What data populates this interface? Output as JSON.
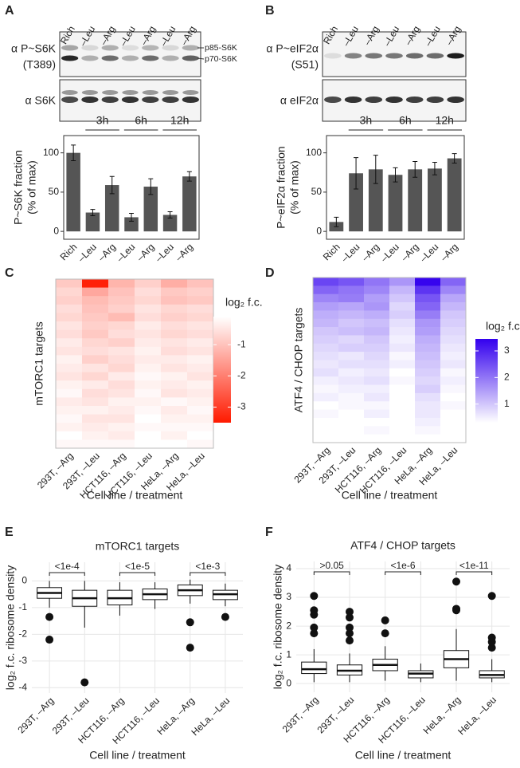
{
  "panels": [
    "A",
    "B",
    "C",
    "D",
    "E",
    "F"
  ],
  "blots": [
    {
      "lanes": [
        "Rich",
        "–Leu",
        "–Arg",
        "–Leu",
        "–Arg",
        "–Leu",
        "–Arg"
      ],
      "labels": [
        "α P~S6K",
        "(T389)",
        "α S6K"
      ],
      "bands": [
        "p85-S6K",
        "p70-S6K"
      ]
    },
    {
      "lanes": [
        "Rich",
        "–Leu",
        "–Arg",
        "–Leu",
        "–Arg",
        "–Leu",
        "–Arg"
      ],
      "labels": [
        "α P~eIF2α",
        "(S51)",
        "α eIF2α"
      ]
    }
  ],
  "chart_data": [
    {
      "type": "bar",
      "ylabel": [
        "P~S6K fraction",
        "(% of max)"
      ],
      "categories": [
        "Rich",
        "–Leu",
        "–Arg",
        "–Leu",
        "–Arg",
        "–Leu",
        "–Arg"
      ],
      "group_labels": [
        "3h",
        "6h",
        "12h"
      ],
      "values": [
        100,
        24,
        59,
        18,
        57,
        21,
        70
      ],
      "errors": [
        10,
        4,
        11,
        5,
        10,
        4,
        6
      ],
      "color": "#555555",
      "ylim": [
        -10,
        122
      ],
      "yticks": [
        0,
        50,
        100
      ]
    },
    {
      "type": "bar",
      "ylabel": [
        "P~eIF2α fraction",
        "(% of max)"
      ],
      "categories": [
        "Rich",
        "–Leu",
        "–Arg",
        "–Leu",
        "–Arg",
        "–Leu",
        "–Arg"
      ],
      "group_labels": [
        "3h",
        "6h",
        "12h"
      ],
      "values": [
        12,
        74,
        79,
        72,
        79,
        80,
        93
      ],
      "errors": [
        6,
        20,
        18,
        9,
        10,
        8,
        6
      ],
      "color": "#555555",
      "ylim": [
        -10,
        122
      ],
      "yticks": [
        0,
        50,
        100
      ]
    },
    {
      "type": "heatmap",
      "ylabel": "mTORC1 targets",
      "xlabel": "Cell line / treatment",
      "categories": [
        "293T, –Arg",
        "293T, –Leu",
        "HCT116, –Arg",
        "HCT116, –Leu",
        "HeLa, –Arg",
        "HeLa, –Leu"
      ],
      "values": [
        [
          -0.9,
          -3.4,
          -1.2,
          -0.8,
          -1.3,
          -1.0
        ],
        [
          -0.7,
          -1.4,
          -1.0,
          -0.6,
          -0.9,
          -0.8
        ],
        [
          -0.8,
          -1.1,
          -0.9,
          -0.7,
          -1.0,
          -0.9
        ],
        [
          -0.6,
          -1.0,
          -0.8,
          -0.5,
          -0.7,
          -0.6
        ],
        [
          -0.7,
          -0.9,
          -1.1,
          -0.6,
          -0.8,
          -0.7
        ],
        [
          -0.5,
          -0.8,
          -0.7,
          -0.4,
          -0.6,
          -0.5
        ],
        [
          -0.6,
          -0.9,
          -0.6,
          -0.5,
          -0.7,
          -0.6
        ],
        [
          -0.4,
          -0.7,
          -0.8,
          -0.4,
          -0.5,
          -0.4
        ],
        [
          -0.5,
          -0.6,
          -0.5,
          -0.3,
          -0.6,
          -0.5
        ],
        [
          -0.3,
          -0.8,
          -0.6,
          -0.4,
          -0.4,
          -0.3
        ],
        [
          -0.4,
          -0.5,
          -0.7,
          -0.3,
          -0.5,
          -0.4
        ],
        [
          -0.5,
          -0.7,
          -0.4,
          -0.2,
          -0.3,
          -0.5
        ],
        [
          -0.3,
          -0.4,
          -0.6,
          -0.3,
          -0.4,
          -0.3
        ],
        [
          -0.2,
          -0.6,
          -0.5,
          -0.2,
          -0.5,
          -0.4
        ],
        [
          -0.4,
          -0.5,
          -0.3,
          -0.3,
          -0.2,
          -0.3
        ],
        [
          -0.3,
          -0.3,
          -0.4,
          -0.2,
          -0.4,
          -0.2
        ],
        [
          -0.2,
          -0.5,
          -0.5,
          -0.1,
          -0.3,
          -0.3
        ],
        [
          -0.3,
          -0.4,
          -0.3,
          -0.2,
          -0.2,
          -0.2
        ],
        [
          -0.1,
          -0.3,
          -0.4,
          -0.1,
          -0.3,
          -0.1
        ],
        [
          -0.2,
          -0.2,
          -0.2,
          -0.1,
          -0.1,
          -0.2
        ]
      ],
      "colors": [
        "#ff1a00",
        "#ffffff"
      ],
      "zlim": [
        -3.5,
        -0.1
      ],
      "zticks": [
        -3,
        -2,
        -1
      ],
      "colorbar_title": "log₂ f.c."
    },
    {
      "type": "heatmap",
      "ylabel": "ATF4 / CHOP targets",
      "xlabel": "Cell line / treatment",
      "categories": [
        "293T, –Arg",
        "293T, –Leu",
        "HCT116, –Arg",
        "HCT116, –Leu",
        "HeLa, –Arg",
        "HeLa, –Leu"
      ],
      "values": [
        [
          2.6,
          2.4,
          2.0,
          1.6,
          3.4,
          2.2
        ],
        [
          2.2,
          2.0,
          1.8,
          1.2,
          2.8,
          1.8
        ],
        [
          1.8,
          1.9,
          1.5,
          1.0,
          2.4,
          1.4
        ],
        [
          1.5,
          1.4,
          1.6,
          0.8,
          2.2,
          1.2
        ],
        [
          1.3,
          1.2,
          1.3,
          0.9,
          1.9,
          1.0
        ],
        [
          1.2,
          1.0,
          1.1,
          0.7,
          1.6,
          0.9
        ],
        [
          1.0,
          1.1,
          1.2,
          0.6,
          1.5,
          0.8
        ],
        [
          0.9,
          0.8,
          1.0,
          0.5,
          1.3,
          0.7
        ],
        [
          0.8,
          0.9,
          0.9,
          0.6,
          1.2,
          0.6
        ],
        [
          0.7,
          0.6,
          0.8,
          0.4,
          1.1,
          0.5
        ],
        [
          0.6,
          0.7,
          0.7,
          0.5,
          1.0,
          0.6
        ],
        [
          0.7,
          0.5,
          0.6,
          0.3,
          0.9,
          0.4
        ],
        [
          0.5,
          0.6,
          0.7,
          0.4,
          0.8,
          0.5
        ],
        [
          0.4,
          0.5,
          0.5,
          0.3,
          0.9,
          0.4
        ],
        [
          0.5,
          0.4,
          0.6,
          0.2,
          0.7,
          0.3
        ],
        [
          0.3,
          0.4,
          0.4,
          0.3,
          0.6,
          0.4
        ],
        [
          0.4,
          0.3,
          0.5,
          0.2,
          0.6,
          0.3
        ],
        [
          0.3,
          0.3,
          0.3,
          0.2,
          0.5,
          0.2
        ],
        [
          0.2,
          0.2,
          0.4,
          0.1,
          0.4,
          0.2
        ],
        [
          0.2,
          0.1,
          0.2,
          0.1,
          0.3,
          0.1
        ]
      ],
      "colors": [
        "#ffffff",
        "#3300ee"
      ],
      "zlim": [
        0.3,
        3.45
      ],
      "zticks": [
        1,
        2,
        3
      ],
      "colorbar_title": "log₂ f.c."
    },
    {
      "type": "box",
      "title": "mTORC1 targets",
      "ylabel": "log₂ f.c. ribosome density",
      "xlabel": "Cell line / treatment",
      "categories": [
        "293T, –Arg",
        "293T, –Leu",
        "HCT116, –Arg",
        "HCT116, –Leu",
        "HeLa, –Arg",
        "HeLa, –Leu"
      ],
      "boxes": [
        {
          "q1": -0.65,
          "median": -0.45,
          "q3": -0.25,
          "whisker_low": -1.0,
          "whisker_high": 0.0,
          "outliers": [
            -1.35,
            -2.2
          ]
        },
        {
          "q1": -0.95,
          "median": -0.65,
          "q3": -0.35,
          "whisker_low": -1.75,
          "whisker_high": 0.0,
          "outliers": [
            -3.8
          ]
        },
        {
          "q1": -0.9,
          "median": -0.65,
          "q3": -0.35,
          "whisker_low": -1.3,
          "whisker_high": -0.05,
          "outliers": []
        },
        {
          "q1": -0.7,
          "median": -0.5,
          "q3": -0.3,
          "whisker_low": -1.05,
          "whisker_high": -0.05,
          "outliers": []
        },
        {
          "q1": -0.55,
          "median": -0.35,
          "q3": -0.15,
          "whisker_low": -0.85,
          "whisker_high": 0.05,
          "outliers": [
            -1.55,
            -2.5
          ]
        },
        {
          "q1": -0.7,
          "median": -0.5,
          "q3": -0.35,
          "whisker_low": -0.95,
          "whisker_high": -0.1,
          "outliers": [
            -1.35
          ]
        }
      ],
      "annotations": [
        "<1e-4",
        "<1e-5",
        "<1e-3"
      ],
      "ylim": [
        -4.2,
        0.7
      ],
      "yticks": [
        -4,
        -3,
        -2,
        -1,
        0
      ],
      "grid": true
    },
    {
      "type": "box",
      "title": "ATF4 / CHOP targets",
      "ylabel": "log₂ f.c. ribosome density",
      "xlabel": "Cell line / treatment",
      "categories": [
        "293T, –Arg",
        "293T, –Leu",
        "HCT116, –Arg",
        "HCT116, –Leu",
        "HeLa, –Arg",
        "HeLa, –Leu"
      ],
      "boxes": [
        {
          "q1": 0.35,
          "median": 0.5,
          "q3": 0.75,
          "whisker_low": 0.05,
          "whisker_high": 1.2,
          "outliers": [
            1.75,
            1.95,
            2.4,
            2.55,
            3.05
          ]
        },
        {
          "q1": 0.3,
          "median": 0.45,
          "q3": 0.65,
          "whisker_low": 0.05,
          "whisker_high": 1.05,
          "outliers": [
            1.5,
            1.75,
            1.95,
            2.3,
            2.5
          ]
        },
        {
          "q1": 0.45,
          "median": 0.65,
          "q3": 0.85,
          "whisker_low": 0.1,
          "whisker_high": 1.3,
          "outliers": [
            1.75,
            2.2
          ]
        },
        {
          "q1": 0.2,
          "median": 0.35,
          "q3": 0.45,
          "whisker_low": 0.05,
          "whisker_high": 0.7,
          "outliers": []
        },
        {
          "q1": 0.55,
          "median": 0.85,
          "q3": 1.15,
          "whisker_low": 0.1,
          "whisker_high": 1.9,
          "outliers": [
            2.55,
            2.6,
            3.55
          ]
        },
        {
          "q1": 0.2,
          "median": 0.3,
          "q3": 0.45,
          "whisker_low": 0.05,
          "whisker_high": 0.85,
          "outliers": [
            1.25,
            1.45,
            1.6,
            3.05
          ]
        }
      ],
      "annotations": [
        ">0.05",
        "<1e-6",
        "<1e-11"
      ],
      "ylim": [
        -0.3,
        4.25
      ],
      "yticks": [
        0,
        1,
        2,
        3,
        4
      ],
      "grid": true
    }
  ]
}
